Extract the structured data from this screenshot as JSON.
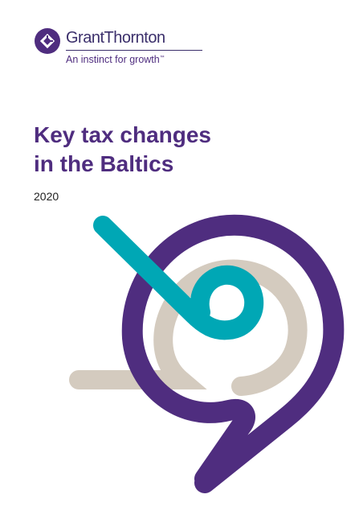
{
  "brand": {
    "name": "GrantThornton",
    "tagline": "An instinct for growth",
    "trademark": "™",
    "logo_icon": "grant-thornton-mark",
    "colors": {
      "purple": "#4f2d7f",
      "dark_purple": "#3b2f6b",
      "teal": "#00a7b5",
      "beige": "#d4cbbf"
    }
  },
  "cover": {
    "title_line1": "Key tax changes",
    "title_line2": "in the Baltics",
    "year": "2020"
  }
}
